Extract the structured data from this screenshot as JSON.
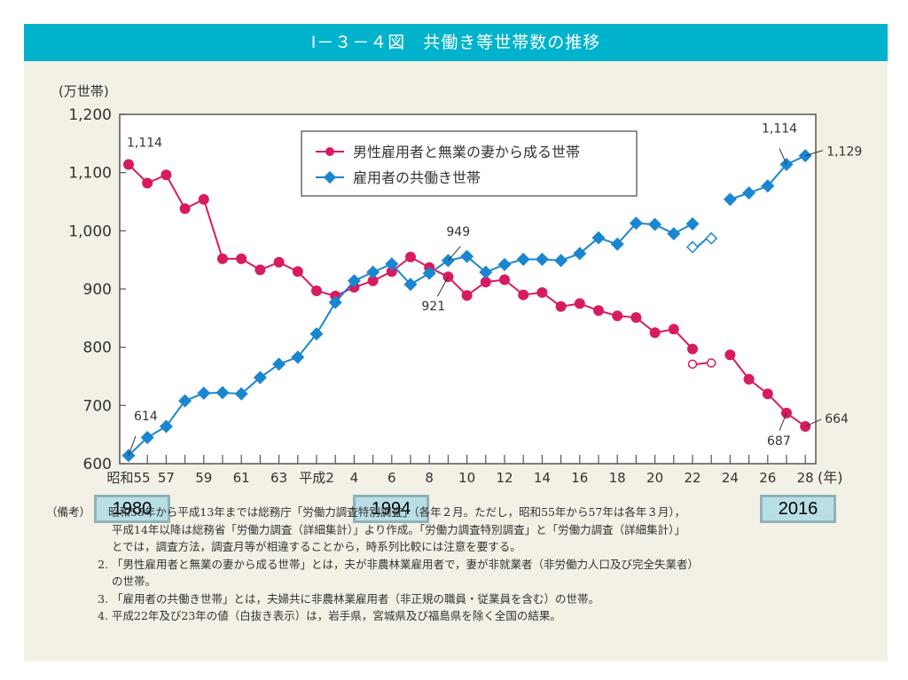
{
  "title": "Ⅰ－３－４図　共働き等世帯数の推移",
  "chart_data": {
    "type": "line",
    "title": "共働き等世帯数の推移",
    "ylabel": "(万世帯)",
    "xlabel": "(年)",
    "ylim": [
      600,
      1200
    ],
    "yticks": [
      600,
      700,
      800,
      900,
      1000,
      1100,
      1200
    ],
    "ytick_labels": [
      "600",
      "700",
      "800",
      "900",
      "1,000",
      "1,100",
      "1,200"
    ],
    "x_years": [
      1980,
      1981,
      1982,
      1983,
      1984,
      1985,
      1986,
      1987,
      1988,
      1989,
      1990,
      1991,
      1992,
      1993,
      1994,
      1995,
      1996,
      1997,
      1998,
      1999,
      2000,
      2001,
      2002,
      2003,
      2004,
      2005,
      2006,
      2007,
      2008,
      2009,
      2010,
      2011,
      2012,
      2013,
      2014,
      2015,
      2016
    ],
    "xtick_labels": [
      {
        "index": 0,
        "label": "昭和55"
      },
      {
        "index": 2,
        "label": "57"
      },
      {
        "index": 4,
        "label": "59"
      },
      {
        "index": 6,
        "label": "61"
      },
      {
        "index": 8,
        "label": "63"
      },
      {
        "index": 10,
        "label": "平成2"
      },
      {
        "index": 12,
        "label": "4"
      },
      {
        "index": 14,
        "label": "6"
      },
      {
        "index": 16,
        "label": "8"
      },
      {
        "index": 18,
        "label": "10"
      },
      {
        "index": 20,
        "label": "12"
      },
      {
        "index": 22,
        "label": "14"
      },
      {
        "index": 24,
        "label": "16"
      },
      {
        "index": 26,
        "label": "18"
      },
      {
        "index": 28,
        "label": "20"
      },
      {
        "index": 30,
        "label": "22"
      },
      {
        "index": 32,
        "label": "24"
      },
      {
        "index": 34,
        "label": "26"
      },
      {
        "index": 36,
        "label": "28"
      }
    ],
    "legend_position": "top-center",
    "series": [
      {
        "name": "男性雇用者と無業の妻から成る世帯",
        "color": "#d81b60",
        "marker": "circle",
        "values": [
          1114,
          1082,
          1096,
          1038,
          1054,
          952,
          952,
          933,
          946,
          930,
          897,
          888,
          903,
          914,
          930,
          955,
          937,
          921,
          889,
          912,
          916,
          890,
          894,
          870,
          875,
          863,
          854,
          851,
          825,
          831,
          797,
          null,
          787,
          745,
          720,
          687,
          664
        ],
        "open_points": [
          {
            "index": 30,
            "value": 771
          },
          {
            "index": 31,
            "value": 773
          }
        ],
        "annotations": [
          {
            "index": 0,
            "text": "1,114"
          },
          {
            "index": 17,
            "text": "921"
          },
          {
            "index": 35,
            "text": "687"
          },
          {
            "index": 36,
            "text": "664"
          }
        ]
      },
      {
        "name": "雇用者の共働き世帯",
        "color": "#1a86d0",
        "marker": "diamond",
        "values": [
          614,
          645,
          664,
          708,
          721,
          722,
          720,
          748,
          771,
          783,
          823,
          877,
          914,
          929,
          943,
          908,
          927,
          949,
          956,
          929,
          942,
          951,
          951,
          949,
          961,
          988,
          977,
          1013,
          1011,
          995,
          1012,
          null,
          1054,
          1065,
          1077,
          1114,
          1129
        ],
        "open_points": [
          {
            "index": 30,
            "value": 972
          },
          {
            "index": 31,
            "value": 987
          }
        ],
        "annotations": [
          {
            "index": 0,
            "text": "614"
          },
          {
            "index": 17,
            "text": "949"
          },
          {
            "index": 35,
            "text": "1,114"
          },
          {
            "index": 36,
            "text": "1,129"
          }
        ]
      }
    ]
  },
  "year_badges": [
    {
      "label": "1980"
    },
    {
      "label": "1994"
    },
    {
      "label": "2016"
    }
  ],
  "notes": {
    "heading": "（備考）",
    "items": [
      {
        "num": "1.",
        "lines": [
          "昭和55年から平成13年までは総務庁「労働力調査特別調査」（各年２月。ただし，昭和55年から57年は各年３月），",
          "平成14年以降は総務省「労働力調査（詳細集計）」より作成。「労働力調査特別調査」と「労働力調査（詳細集計）」",
          "とでは，調査方法，調査月等が相違することから，時系列比較には注意を要する。"
        ]
      },
      {
        "num": "2.",
        "lines": [
          "「男性雇用者と無業の妻から成る世帯」とは，夫が非農林業雇用者で，妻が非就業者（非労働力人口及び完全失業者）",
          "の世帯。"
        ]
      },
      {
        "num": "3.",
        "lines": [
          "「雇用者の共働き世帯」とは，夫婦共に非農林業雇用者（非正規の職員・従業員を含む）の世帯。"
        ]
      },
      {
        "num": "4.",
        "lines": [
          "平成22年及び23年の値（白抜き表示）は，岩手県，宮城県及び福島県を除く全国の結果。"
        ]
      }
    ]
  }
}
